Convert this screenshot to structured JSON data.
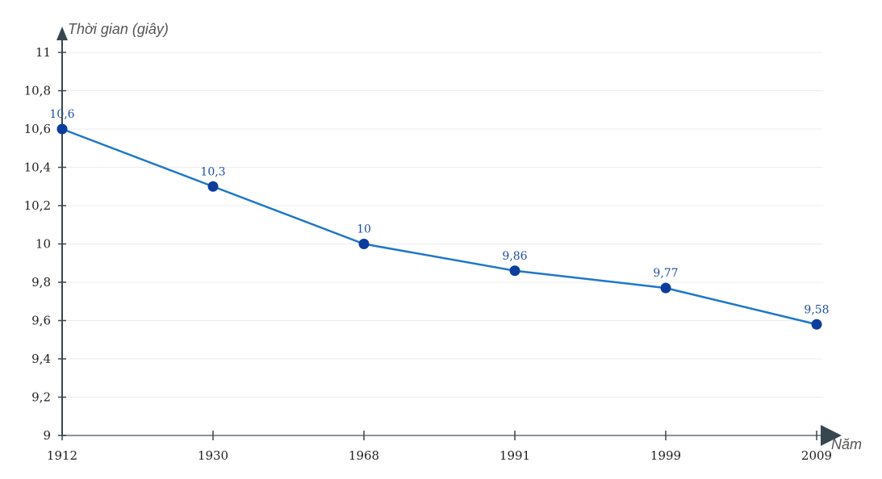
{
  "chart_data": {
    "type": "line",
    "title": "",
    "xlabel": "Năm",
    "ylabel": "Thời gian (giây)",
    "categories": [
      "1912",
      "1930",
      "1968",
      "1991",
      "1999",
      "2009"
    ],
    "series": [
      {
        "values": [
          10.6,
          10.3,
          10,
          9.86,
          9.77,
          9.58
        ],
        "labels": [
          "10,6",
          "10,3",
          "10",
          "9,86",
          "9,77",
          "9,58"
        ]
      }
    ],
    "ylim": [
      9,
      11
    ],
    "yticks": [
      9,
      9.2,
      9.4,
      9.6,
      9.8,
      10,
      10.2,
      10.4,
      10.6,
      10.8,
      11
    ],
    "ytick_labels": [
      "9",
      "9,2",
      "9,4",
      "9,6",
      "9,8",
      "10",
      "10,2",
      "10,4",
      "10,6",
      "10,8",
      "11"
    ],
    "grid": true,
    "colors": {
      "line": "#1f77c9",
      "point": "#0d3d9c",
      "label": "#1f4e9e",
      "axis": "#37474f"
    }
  }
}
